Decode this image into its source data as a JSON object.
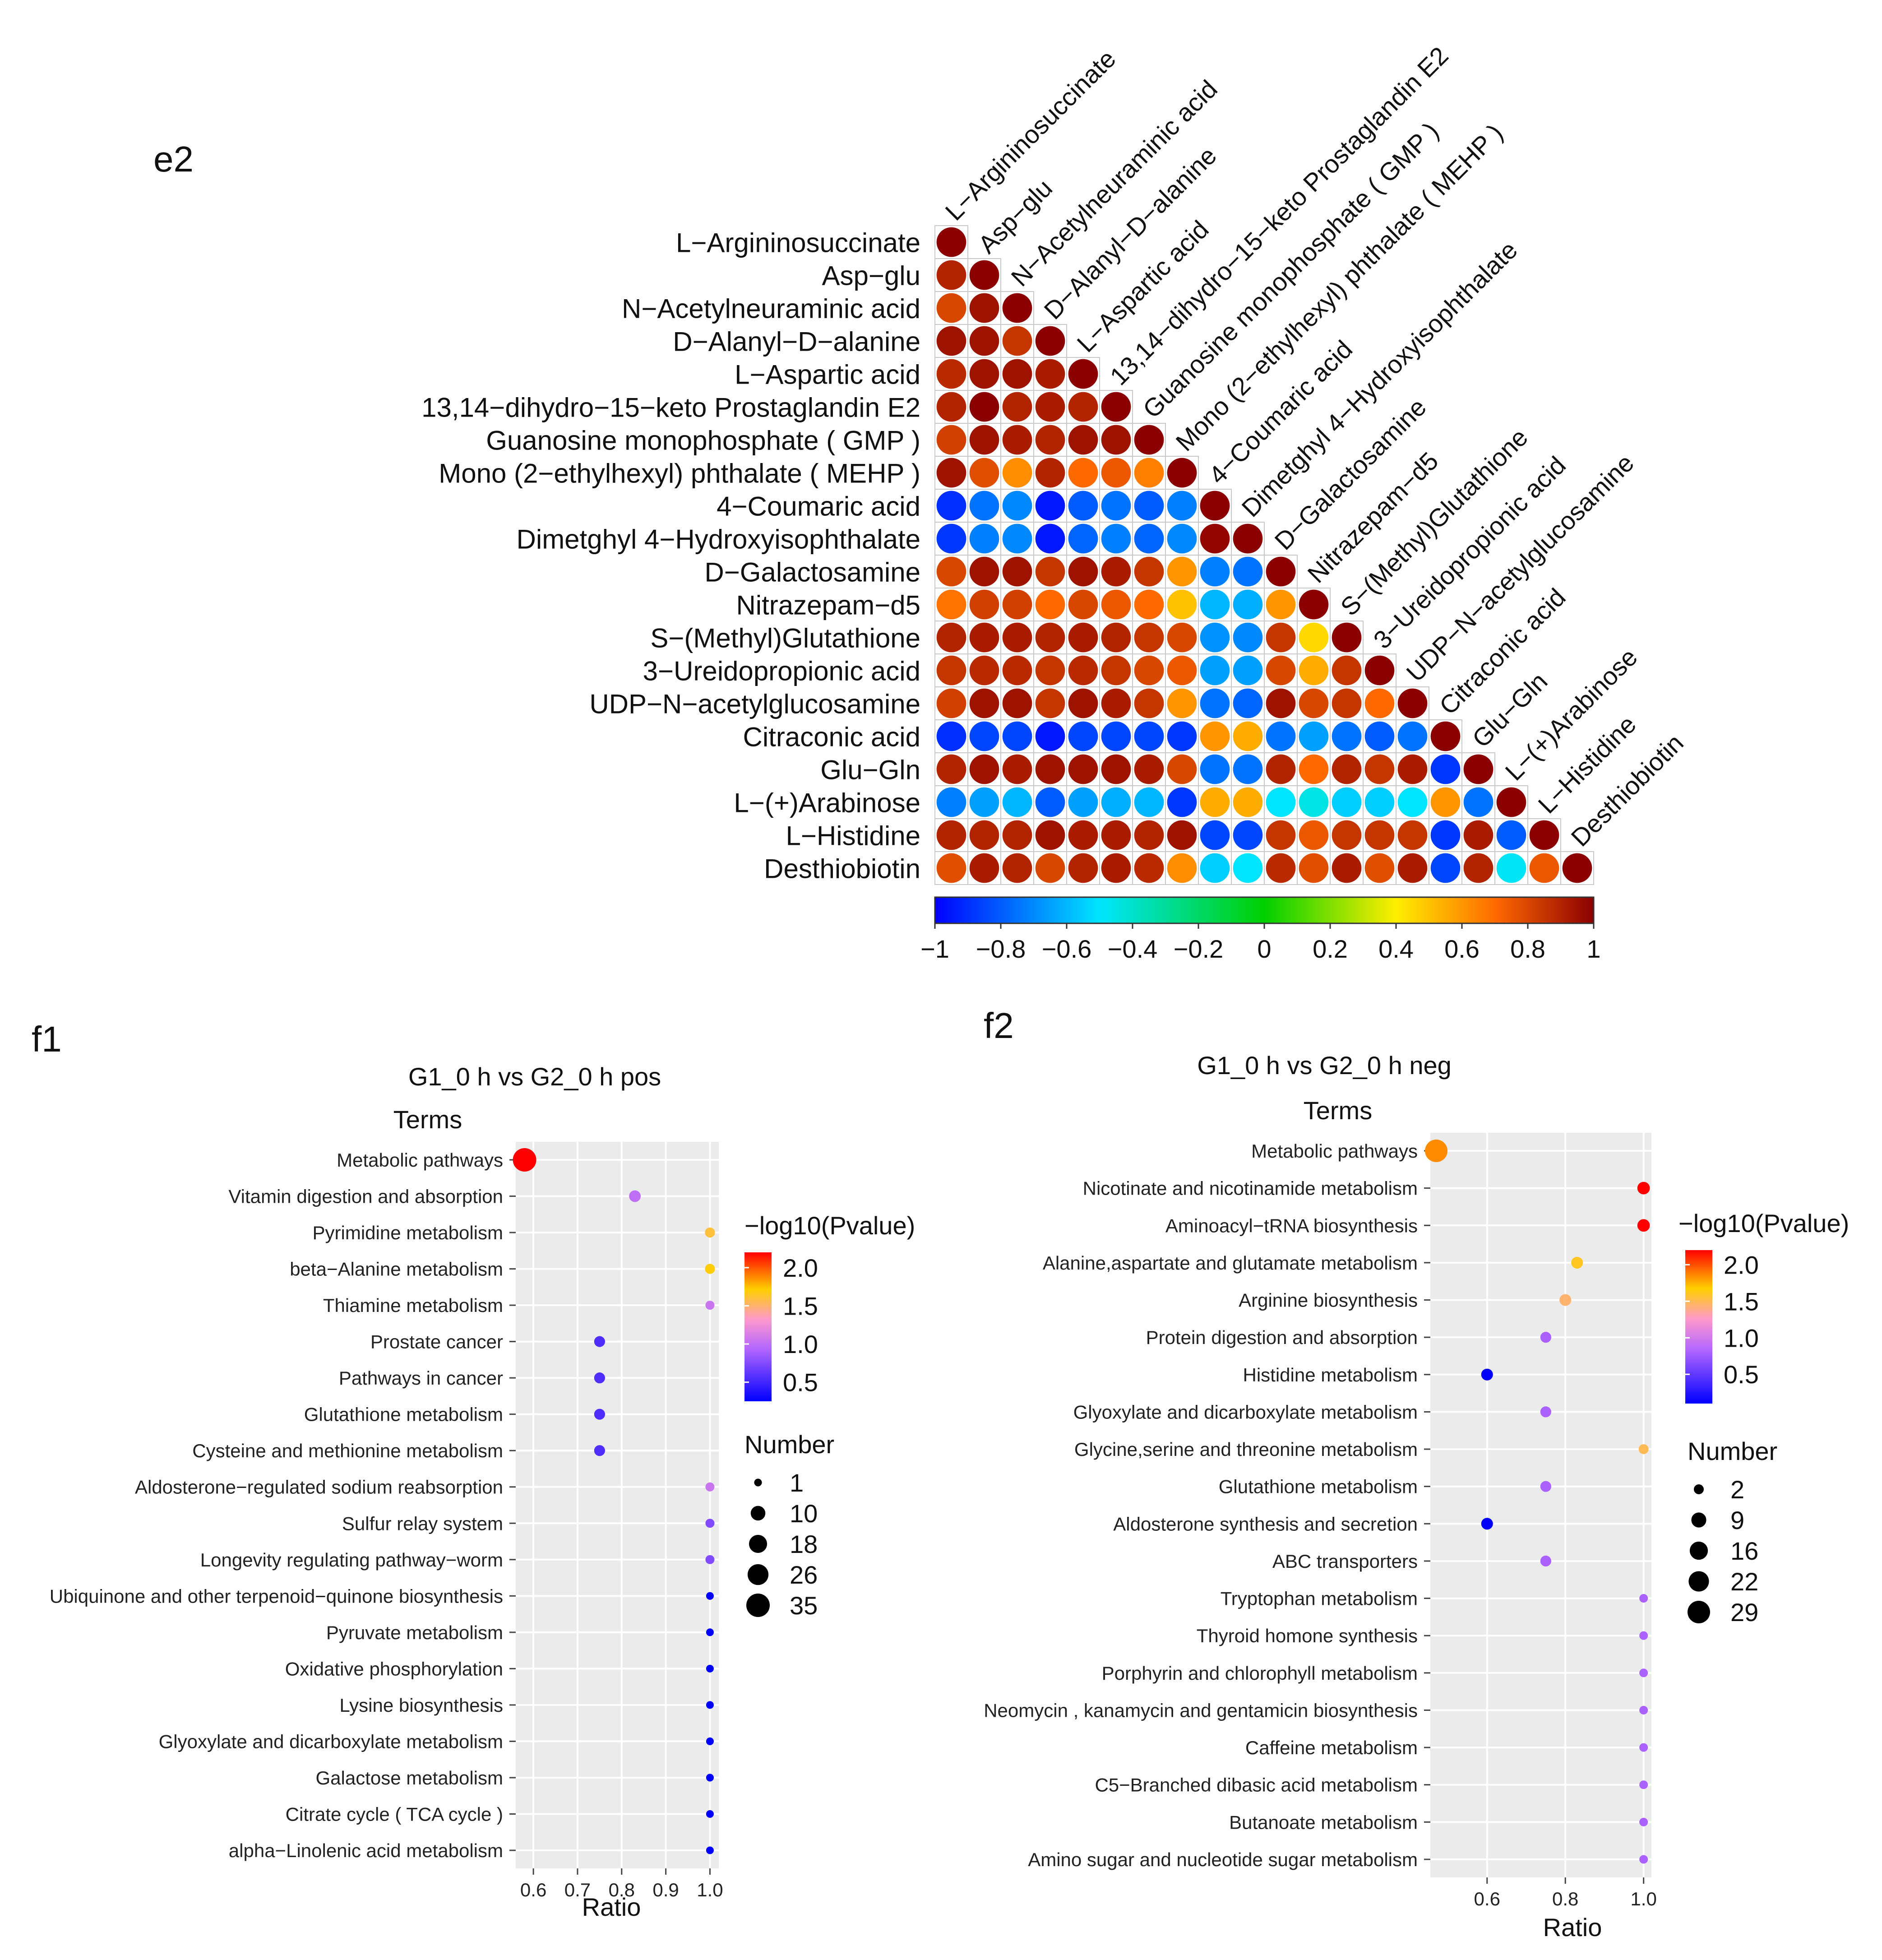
{
  "chart_data": [
    {
      "type": "heatmap",
      "panel": "e2",
      "labels": [
        "L−Argininosuccinate",
        "Asp−glu",
        "N−Acetylneuraminic acid",
        "D−Alanyl−D−alanine",
        "L−Aspartic acid",
        "13,14−dihydro−15−keto Prostaglandin E2",
        "Guanosine monophosphate ( GMP )",
        "Mono (2−ethylhexyl) phthalate ( MEHP )",
        "4−Coumaric acid",
        "Dimetghyl 4−Hydroxyisophthalate",
        "D−Galactosamine",
        "Nitrazepam−d5",
        "S−(Methyl)Glutathione",
        "3−Ureidopropionic acid",
        "UDP−N−acetylglucosamine",
        "Citraconic acid",
        "Glu−Gln",
        "L−(+)Arabinose",
        "L−Histidine",
        "Desthiobiotin"
      ],
      "matrix": [
        [
          1.0
        ],
        [
          0.9,
          1.0
        ],
        [
          0.8,
          0.95,
          1.0
        ],
        [
          0.95,
          0.95,
          0.85,
          1.0
        ],
        [
          0.88,
          0.95,
          0.95,
          0.92,
          1.0
        ],
        [
          0.9,
          1.0,
          0.9,
          0.92,
          0.9,
          1.0
        ],
        [
          0.82,
          0.95,
          0.92,
          0.9,
          0.95,
          0.95,
          1.0
        ],
        [
          0.95,
          0.78,
          0.62,
          0.9,
          0.7,
          0.75,
          0.65,
          1.0
        ],
        [
          -0.9,
          -0.75,
          -0.7,
          -0.95,
          -0.8,
          -0.75,
          -0.8,
          -0.72,
          1.0
        ],
        [
          -0.88,
          -0.72,
          -0.7,
          -0.95,
          -0.78,
          -0.72,
          -0.78,
          -0.7,
          0.98,
          1.0
        ],
        [
          0.8,
          0.95,
          0.95,
          0.85,
          0.95,
          0.92,
          0.85,
          0.6,
          -0.72,
          -0.75,
          1.0
        ],
        [
          0.68,
          0.82,
          0.82,
          0.7,
          0.8,
          0.75,
          0.7,
          0.5,
          -0.6,
          -0.62,
          0.6,
          1.0
        ],
        [
          0.9,
          0.92,
          0.92,
          0.9,
          0.92,
          0.9,
          0.85,
          0.8,
          -0.68,
          -0.7,
          0.85,
          0.45,
          1.0
        ],
        [
          0.85,
          0.88,
          0.88,
          0.85,
          0.88,
          0.85,
          0.8,
          0.75,
          -0.65,
          -0.65,
          0.8,
          0.55,
          0.85,
          1.0
        ],
        [
          0.82,
          0.95,
          0.95,
          0.85,
          0.95,
          0.92,
          0.85,
          0.6,
          -0.75,
          -0.78,
          0.95,
          0.8,
          0.85,
          0.7,
          1.0
        ],
        [
          -0.9,
          -0.85,
          -0.85,
          -0.95,
          -0.85,
          -0.85,
          -0.85,
          -0.88,
          0.6,
          0.55,
          -0.75,
          -0.65,
          -0.75,
          -0.8,
          -0.75,
          1.0
        ],
        [
          0.9,
          0.95,
          0.92,
          0.95,
          0.95,
          0.95,
          0.92,
          0.8,
          -0.75,
          -0.75,
          0.9,
          0.7,
          0.9,
          0.85,
          0.92,
          -0.88,
          1.0
        ],
        [
          -0.72,
          -0.65,
          -0.6,
          -0.8,
          -0.65,
          -0.62,
          -0.6,
          -0.88,
          0.55,
          0.55,
          -0.5,
          -0.45,
          -0.55,
          -0.55,
          -0.5,
          0.6,
          -0.75,
          1.0
        ],
        [
          0.9,
          0.9,
          0.9,
          0.95,
          0.92,
          0.92,
          0.9,
          0.95,
          -0.85,
          -0.85,
          0.85,
          0.75,
          0.85,
          0.85,
          0.85,
          -0.88,
          0.92,
          -0.8,
          1.0
        ],
        [
          0.78,
          0.92,
          0.9,
          0.8,
          0.9,
          0.92,
          0.88,
          0.62,
          -0.55,
          -0.5,
          0.88,
          0.78,
          0.92,
          0.78,
          0.92,
          -0.85,
          0.9,
          -0.48,
          0.75,
          1.0
        ]
      ],
      "colorbar": {
        "min": -1,
        "max": 1,
        "ticks": [
          "−1",
          "−0.8",
          "−0.6",
          "−0.4",
          "−0.2",
          "0",
          "0.2",
          "0.4",
          "0.6",
          "0.8",
          "1"
        ]
      }
    },
    {
      "type": "scatter",
      "panel": "f1",
      "title": "G1_0 h vs G2_0 h pos",
      "ylabel": "Terms",
      "xlabel": "Ratio",
      "xlim": [
        0.56,
        1.02
      ],
      "xticks": [
        "0.6",
        "0.7",
        "0.8",
        "0.9",
        "1.0"
      ],
      "terms": [
        "Metabolic pathways",
        "Vitamin digestion and absorption",
        "Pyrimidine metabolism",
        "beta−Alanine metabolism",
        "Thiamine metabolism",
        "Prostate cancer",
        "Pathways in cancer",
        "Glutathione metabolism",
        "Cysteine and methionine metabolism",
        "Aldosterone−regulated sodium reabsorption",
        "Sulfur relay system",
        "Longevity regulating pathway−worm",
        "Ubiquinone and other terpenoid−quinone biosynthesis",
        "Pyruvate metabolism",
        "Oxidative phosphorylation",
        "Lysine biosynthesis",
        "Glyoxylate and dicarboxylate metabolism",
        "Galactose metabolism",
        "Citrate cycle ( TCA cycle )",
        "alpha−Linolenic acid metabolism"
      ],
      "ratio": [
        0.58,
        0.83,
        1.0,
        1.0,
        1.0,
        0.75,
        0.75,
        0.75,
        0.75,
        1.0,
        1.0,
        1.0,
        1.0,
        1.0,
        1.0,
        1.0,
        1.0,
        1.0,
        1.0,
        1.0
      ],
      "number": [
        35,
        5,
        3,
        3,
        2,
        4,
        4,
        4,
        4,
        2,
        2,
        2,
        1,
        1,
        1,
        1,
        1,
        1,
        1,
        1
      ],
      "neglog10p": [
        2.2,
        1.0,
        1.6,
        1.7,
        1.05,
        0.55,
        0.55,
        0.55,
        0.55,
        1.05,
        0.75,
        0.75,
        0.25,
        0.25,
        0.25,
        0.25,
        0.25,
        0.25,
        0.25,
        0.25
      ],
      "color_legend": {
        "title": "−log10(Pvalue)",
        "min": 0.25,
        "max": 2.2,
        "ticks": [
          "2.0",
          "1.5",
          "1.0",
          "0.5"
        ],
        "tick_values": [
          2.0,
          1.5,
          1.0,
          0.5
        ]
      },
      "size_legend": {
        "title": "Number",
        "ticks": [
          "1",
          "10",
          "18",
          "26",
          "35"
        ],
        "tick_values": [
          1,
          10,
          18,
          26,
          35
        ],
        "max": 35
      }
    },
    {
      "type": "scatter",
      "panel": "f2",
      "title": "G1_0 h vs G2_0 h neg",
      "ylabel": "Terms",
      "xlabel": "Ratio",
      "xlim": [
        0.455,
        1.02
      ],
      "xticks": [
        "0.6",
        "0.8",
        "1.0"
      ],
      "terms": [
        "Metabolic pathways",
        "Nicotinate and nicotinamide metabolism",
        "Aminoacyl−tRNA biosynthesis",
        "Alanine,aspartate and glutamate metabolism",
        "Arginine biosynthesis",
        "Protein digestion and absorption",
        "Histidine metabolism",
        "Glyoxylate and dicarboxylate metabolism",
        "Glycine,serine and threonine metabolism",
        "Glutathione metabolism",
        "Aldosterone synthesis and secretion",
        "ABC transporters",
        "Tryptophan metabolism",
        "Thyroid homone synthesis",
        "Porphyrin and chlorophyll metabolism",
        "Neomycin , kanamycin and gentamicin biosynthesis",
        "Caffeine metabolism",
        "C5−Branched dibasic acid metabolism",
        "Butanoate metabolism",
        "Amino sugar and nucleotide sugar metabolism"
      ],
      "ratio": [
        0.47,
        1.0,
        1.0,
        0.83,
        0.8,
        0.75,
        0.6,
        0.75,
        1.0,
        0.75,
        0.6,
        0.75,
        1.0,
        1.0,
        1.0,
        1.0,
        1.0,
        1.0,
        1.0,
        1.0
      ],
      "number": [
        29,
        5,
        5,
        4,
        4,
        3,
        4,
        3,
        2,
        3,
        4,
        3,
        1,
        1,
        1,
        1,
        1,
        1,
        1,
        1
      ],
      "neglog10p": [
        1.85,
        2.2,
        2.2,
        1.6,
        1.45,
        0.8,
        0.1,
        0.8,
        1.5,
        0.8,
        0.1,
        0.8,
        0.8,
        0.8,
        0.8,
        0.8,
        0.8,
        0.8,
        0.8,
        0.8
      ],
      "color_legend": {
        "title": "−log10(Pvalue)",
        "min": 0.1,
        "max": 2.2,
        "ticks": [
          "2.0",
          "1.5",
          "1.0",
          "0.5"
        ],
        "tick_values": [
          2.0,
          1.5,
          1.0,
          0.5
        ]
      },
      "size_legend": {
        "title": "Number",
        "ticks": [
          "2",
          "9",
          "16",
          "22",
          "29"
        ],
        "tick_values": [
          2,
          9,
          16,
          22,
          29
        ],
        "max": 29
      }
    }
  ]
}
